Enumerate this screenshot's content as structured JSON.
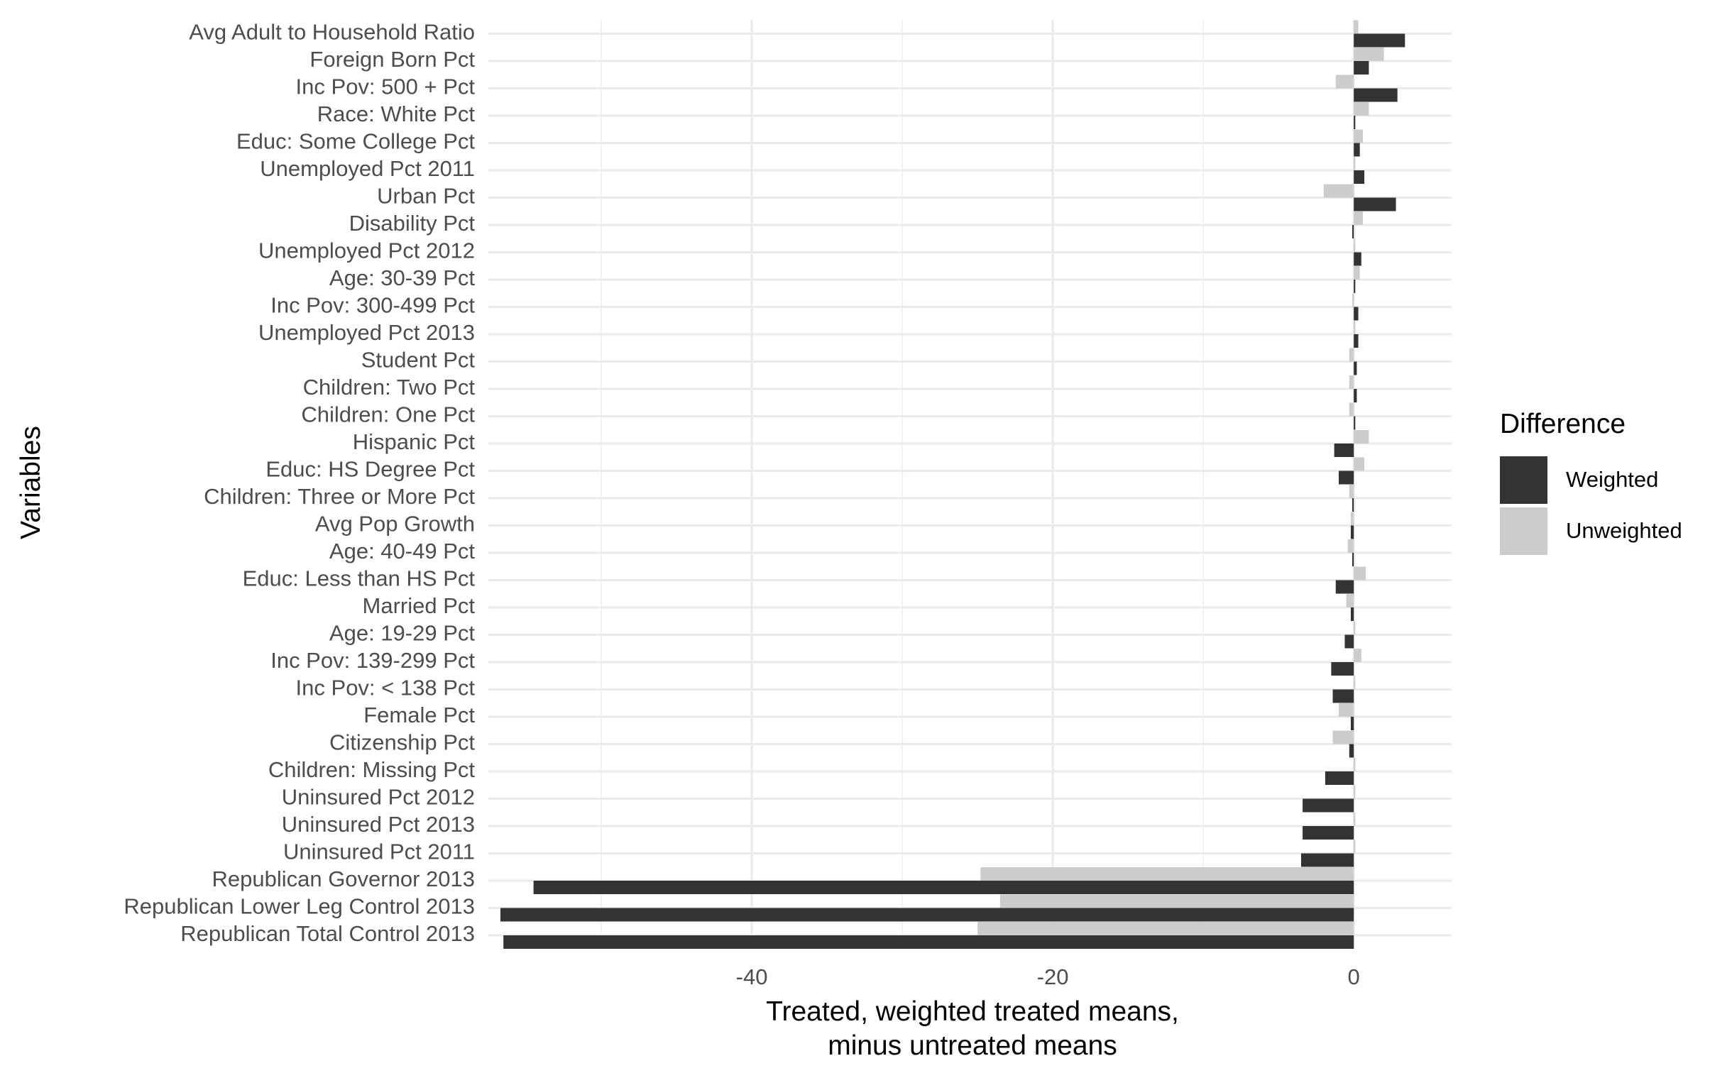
{
  "chart_data": {
    "type": "bar",
    "orientation": "horizontal",
    "categories": [
      "Avg Adult to Household Ratio",
      "Foreign Born Pct",
      "Inc Pov: 500 + Pct",
      "Race: White Pct",
      "Educ: Some College Pct",
      "Unemployed Pct 2011",
      "Urban Pct",
      "Disability Pct",
      "Unemployed Pct 2012",
      "Age: 30-39 Pct",
      "Inc Pov: 300-499 Pct",
      "Unemployed Pct 2013",
      "Student Pct",
      "Children: Two Pct",
      "Children: One Pct",
      "Hispanic Pct",
      "Educ: HS Degree Pct",
      "Children: Three or More Pct",
      "Avg Pop Growth",
      "Age: 40-49 Pct",
      "Educ: Less than HS Pct",
      "Married Pct",
      "Age: 19-29 Pct",
      "Inc Pov: 139-299 Pct",
      "Inc Pov: < 138 Pct",
      "Female Pct",
      "Citizenship Pct",
      "Children: Missing Pct",
      "Uninsured Pct 2012",
      "Uninsured Pct 2013",
      "Uninsured Pct 2011",
      "Republican Governor 2013",
      "Republican Lower Leg Control 2013",
      "Republican Total Control 2013"
    ],
    "series": [
      {
        "name": "Weighted",
        "color": "#333333",
        "values": [
          3.4,
          1.0,
          2.9,
          0.1,
          0.4,
          0.7,
          2.8,
          -0.1,
          0.5,
          0.1,
          0.3,
          0.3,
          0.2,
          0.2,
          0.1,
          -1.3,
          -1.0,
          -0.1,
          -0.2,
          -0.1,
          -1.2,
          -0.2,
          -0.6,
          -1.5,
          -1.4,
          -0.2,
          -0.3,
          -1.9,
          -3.4,
          -3.4,
          -3.5,
          -54.5,
          -56.7,
          -56.5
        ]
      },
      {
        "name": "Unweighted",
        "color": "#cccccc",
        "values": [
          0.3,
          2.0,
          -1.2,
          1.0,
          0.6,
          0.1,
          -2.0,
          0.6,
          0.1,
          0.4,
          -0.1,
          0.1,
          -0.3,
          -0.3,
          -0.3,
          1.0,
          0.7,
          -0.3,
          -0.2,
          -0.4,
          0.8,
          -0.5,
          0.1,
          0.5,
          0.1,
          -1.0,
          -1.4,
          0.1,
          0.1,
          0.1,
          0.1,
          -24.8,
          -23.5,
          -25.0
        ]
      }
    ],
    "xlim": [
      -57.5,
      6.5
    ],
    "xticks": [
      -40,
      -20,
      0
    ],
    "xtick_labels": [
      "-40",
      "-20",
      "0"
    ],
    "xlabel_lines": [
      "Treated, weighted treated means,",
      "minus untreated means"
    ],
    "ylabel": "Variables",
    "grid": true,
    "legend": {
      "title": "Difference",
      "position": "right",
      "entries": [
        "Weighted",
        "Unweighted"
      ]
    }
  }
}
